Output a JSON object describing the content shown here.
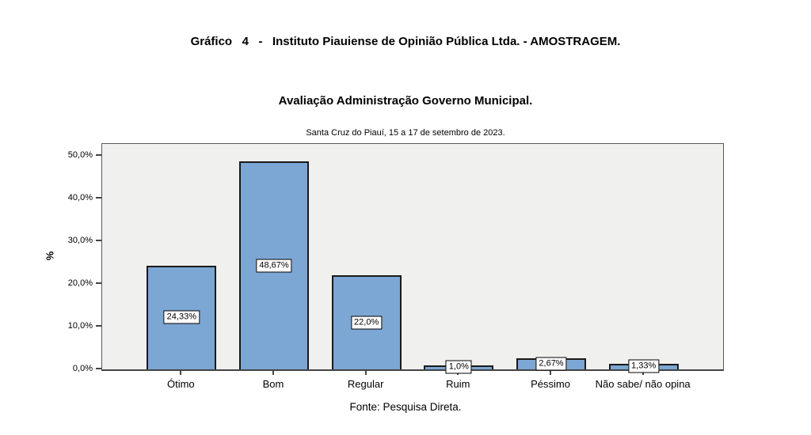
{
  "page": {
    "caption": "Gráfico   4   -   Instituto Piauiense de Opinião Pública Ltda. - AMOSTRAGEM.",
    "source_note": "Fonte: Pesquisa Direta."
  },
  "chart_data": {
    "type": "bar",
    "title": "Avaliação Administração Governo Municipal.",
    "subtitle": "Santa Cruz do Piauí, 15 a 17 de setembro de 2023.",
    "categories": [
      "Ótimo",
      "Bom",
      "Regular",
      "Ruim",
      "Péssimo",
      "Não sabe/ não opina"
    ],
    "values": [
      24.33,
      48.67,
      22.0,
      1.0,
      2.67,
      1.33
    ],
    "value_labels": [
      "24,33%",
      "48,67%",
      "22,0%",
      "1,0%",
      "2,67%",
      "1,33%"
    ],
    "xlabel": "",
    "ylabel": "%",
    "ylim": [
      0,
      52.8
    ],
    "yticks": [
      0,
      10,
      20,
      30,
      40,
      50
    ],
    "ytick_labels": [
      "0,0%",
      "10,0%",
      "20,0%",
      "30,0%",
      "40,0%",
      "50,0%"
    ],
    "grid": false,
    "legend": false,
    "colors": {
      "bar_fill": "#7CA6D4",
      "bar_border": "#1a1a1a",
      "plot_background": "#F0F0EF",
      "axis": "#444444"
    }
  }
}
